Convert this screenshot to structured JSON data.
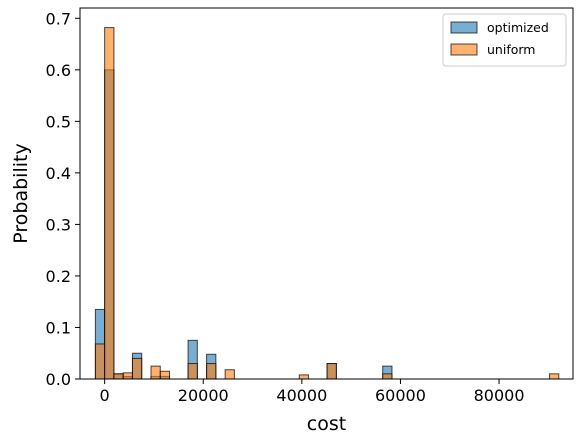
{
  "chart_data": {
    "type": "bar",
    "xlabel": "cost",
    "ylabel": "Probability",
    "xlim": [
      -5000,
      95000
    ],
    "ylim": [
      0,
      0.72
    ],
    "x_ticks": [
      0,
      20000,
      40000,
      60000,
      80000
    ],
    "x_tick_labels": [
      "0",
      "20000",
      "40000",
      "60000",
      "80000"
    ],
    "y_ticks": [
      0.0,
      0.1,
      0.2,
      0.3,
      0.4,
      0.5,
      0.6,
      0.7
    ],
    "y_tick_labels": [
      "0.0",
      "0.1",
      "0.2",
      "0.3",
      "0.4",
      "0.5",
      "0.6",
      "0.7"
    ],
    "bin_width": 1880,
    "grid": false,
    "legend_position": "top-right",
    "series": [
      {
        "name": "optimized",
        "color": "#1f77b4",
        "alpha": 0.6,
        "bins": [
          {
            "x": -1880,
            "y": 0.135
          },
          {
            "x": 0,
            "y": 0.6
          },
          {
            "x": 1880,
            "y": 0.01
          },
          {
            "x": 3760,
            "y": 0.005
          },
          {
            "x": 5640,
            "y": 0.05
          },
          {
            "x": 9400,
            "y": 0.005
          },
          {
            "x": 11280,
            "y": 0.005
          },
          {
            "x": 16920,
            "y": 0.075
          },
          {
            "x": 20680,
            "y": 0.048
          },
          {
            "x": 45120,
            "y": 0.03
          },
          {
            "x": 56400,
            "y": 0.025
          }
        ]
      },
      {
        "name": "uniform",
        "color": "#ff7f0e",
        "alpha": 0.6,
        "bins": [
          {
            "x": -1880,
            "y": 0.068
          },
          {
            "x": 0,
            "y": 0.682
          },
          {
            "x": 1880,
            "y": 0.01
          },
          {
            "x": 3760,
            "y": 0.012
          },
          {
            "x": 5640,
            "y": 0.04
          },
          {
            "x": 9400,
            "y": 0.025
          },
          {
            "x": 11280,
            "y": 0.015
          },
          {
            "x": 16920,
            "y": 0.03
          },
          {
            "x": 20680,
            "y": 0.03
          },
          {
            "x": 24440,
            "y": 0.018
          },
          {
            "x": 39480,
            "y": 0.008
          },
          {
            "x": 45120,
            "y": 0.03
          },
          {
            "x": 56400,
            "y": 0.01
          },
          {
            "x": 90240,
            "y": 0.01
          }
        ]
      }
    ]
  }
}
